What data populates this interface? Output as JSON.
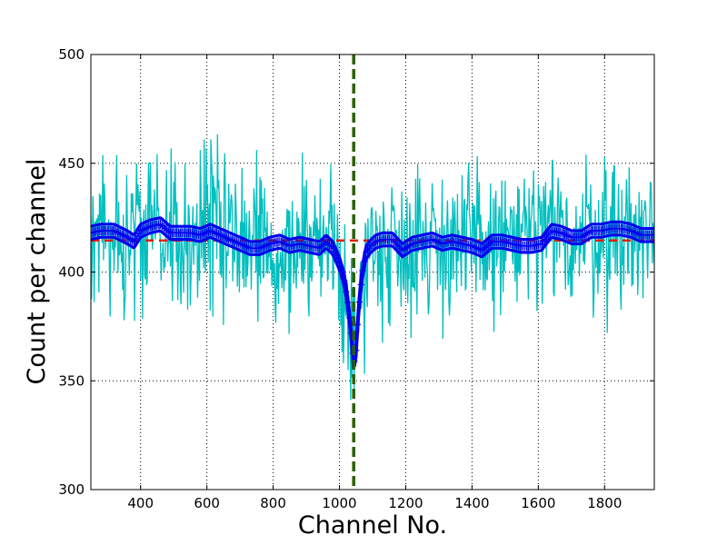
{
  "chart_data": {
    "type": "line",
    "title": "",
    "xlabel": "Channel No.",
    "ylabel": "Count per channel",
    "xlim": [
      250,
      1950
    ],
    "ylim": [
      300,
      500
    ],
    "x_ticks": [
      400,
      600,
      800,
      1000,
      1200,
      1400,
      1600,
      1800
    ],
    "y_ticks": [
      300,
      350,
      400,
      450,
      500
    ],
    "grid": true,
    "legend": "none",
    "baseline": 414.5,
    "marker_x": 1043,
    "noise_amplitude": 18,
    "raw_counts_profile": {
      "x": [
        250,
        300,
        350,
        400,
        450,
        500,
        550,
        600,
        650,
        700,
        750,
        800,
        850,
        900,
        950,
        980,
        1000,
        1015,
        1025,
        1035,
        1043,
        1050,
        1060,
        1075,
        1100,
        1150,
        1200,
        1250,
        1300,
        1350,
        1400,
        1450,
        1500,
        1550,
        1600,
        1650,
        1700,
        1750,
        1800,
        1850,
        1900,
        1950
      ],
      "y": [
        418,
        419,
        417,
        419,
        421,
        419,
        418,
        419,
        417,
        415,
        412,
        411,
        413,
        412,
        411,
        409,
        404,
        396,
        386,
        372,
        357,
        366,
        385,
        401,
        411,
        413,
        414,
        415,
        414,
        413,
        412,
        413,
        414,
        415,
        416,
        417,
        417,
        418,
        419,
        419,
        418,
        417
      ]
    },
    "series": [
      {
        "x": [
          250,
          280,
          320,
          360,
          380,
          400,
          430,
          460,
          490,
          520,
          550,
          580,
          610,
          640,
          670,
          700,
          730,
          760,
          790,
          820,
          850,
          880,
          910,
          940,
          960,
          980,
          1000,
          1015,
          1025,
          1035,
          1043,
          1050,
          1058,
          1068,
          1080,
          1095,
          1110,
          1130,
          1160,
          1190,
          1220,
          1250,
          1280,
          1310,
          1340,
          1370,
          1400,
          1430,
          1460,
          1490,
          1520,
          1550,
          1580,
          1610,
          1640,
          1670,
          1700,
          1730,
          1760,
          1790,
          1820,
          1850,
          1880,
          1910,
          1950
        ],
        "y": [
          418,
          419,
          419,
          416,
          414,
          419,
          421,
          422,
          418,
          418,
          418,
          417,
          419,
          417,
          415,
          413,
          411,
          411,
          413,
          414,
          412,
          413,
          412,
          411,
          414,
          411,
          404,
          396,
          386,
          372,
          357,
          364,
          383,
          399,
          409,
          412,
          414,
          415,
          415,
          410,
          413,
          414,
          415,
          413,
          414,
          413,
          412,
          410,
          414,
          414,
          413,
          412,
          412,
          413,
          419,
          418,
          416,
          416,
          419,
          419,
          420,
          420,
          419,
          417,
          417
        ],
        "color": "#0000ee"
      }
    ],
    "colors": {
      "raw": "#00bfbf",
      "fit": "#0000ee",
      "baseline": "#dd2200",
      "marker": "#2a6000"
    }
  }
}
